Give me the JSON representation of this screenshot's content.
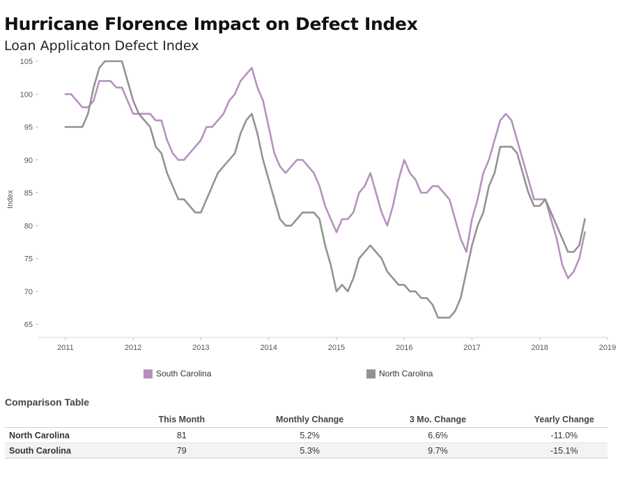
{
  "title": "Hurricane Florence Impact on Defect Index",
  "subtitle": "Loan Applicaton Defect Index",
  "chart_data": {
    "type": "line",
    "title": "Hurricane Florence Impact on Defect Index",
    "subtitle": "Loan Applicaton Defect Index",
    "ylabel": "Index",
    "xlabel": "",
    "ylim": [
      63,
      105
    ],
    "xlim": [
      2010.6,
      2019.0
    ],
    "yticks": [
      65,
      70,
      75,
      80,
      85,
      90,
      95,
      100,
      105
    ],
    "xticks": [
      "2011",
      "2012",
      "2013",
      "2014",
      "2015",
      "2016",
      "2017",
      "2018",
      "2019"
    ],
    "x_start": "2011-01",
    "grid": false,
    "legend_position": "bottom",
    "series": [
      {
        "name": "South Carolina",
        "color": "#b790bf",
        "values": [
          100,
          100,
          99,
          98,
          98,
          99,
          102,
          102,
          102,
          101,
          101,
          99,
          97,
          97,
          97,
          97,
          96,
          96,
          93,
          91,
          90,
          90,
          91,
          92,
          93,
          95,
          95,
          96,
          97,
          99,
          100,
          102,
          103,
          104,
          101,
          99,
          95,
          91,
          89,
          88,
          89,
          90,
          90,
          89,
          88,
          86,
          83,
          81,
          79,
          81,
          81,
          82,
          85,
          86,
          88,
          85,
          82,
          80,
          83,
          87,
          90,
          88,
          87,
          85,
          85,
          86,
          86,
          85,
          84,
          81,
          78,
          76,
          81,
          84,
          88,
          90,
          93,
          96,
          97,
          96,
          93,
          90,
          87,
          84,
          84,
          84,
          81,
          78,
          74,
          72,
          73,
          75,
          79
        ]
      },
      {
        "name": "North Carolina",
        "color": "#929292",
        "values": [
          95,
          95,
          95,
          95,
          97,
          101,
          104,
          105,
          105,
          105,
          105,
          102,
          99,
          97,
          96,
          95,
          92,
          91,
          88,
          86,
          84,
          84,
          83,
          82,
          82,
          84,
          86,
          88,
          89,
          90,
          91,
          94,
          96,
          97,
          94,
          90,
          87,
          84,
          81,
          80,
          80,
          81,
          82,
          82,
          82,
          81,
          77,
          74,
          70,
          71,
          70,
          72,
          75,
          76,
          77,
          76,
          75,
          73,
          72,
          71,
          71,
          70,
          70,
          69,
          69,
          68,
          66,
          66,
          66,
          67,
          69,
          73,
          77,
          80,
          82,
          86,
          88,
          92,
          92,
          92,
          91,
          88,
          85,
          83,
          83,
          84,
          82,
          80,
          78,
          76,
          76,
          77,
          81
        ]
      }
    ]
  },
  "legend": {
    "south_carolina": "South Carolina",
    "north_carolina": "North Carolina"
  },
  "table": {
    "title": "Comparison Table",
    "columns": [
      "",
      "This Month",
      "Monthly Change",
      "3 Mo. Change",
      "Yearly Change"
    ],
    "rows": [
      {
        "name": "North Carolina",
        "this_month": "81",
        "monthly": "5.2%",
        "three_mo": "6.6%",
        "yearly": "-11.0%"
      },
      {
        "name": "South Carolina",
        "this_month": "79",
        "monthly": "5.3%",
        "three_mo": "9.7%",
        "yearly": "-15.1%"
      }
    ]
  }
}
